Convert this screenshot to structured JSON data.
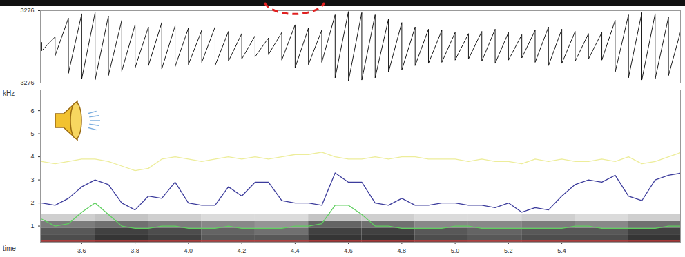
{
  "chart_data": [
    {
      "type": "waveform",
      "x": [
        3.45,
        3.5,
        3.55,
        3.6,
        3.65,
        3.7,
        3.75,
        3.8,
        3.85,
        3.9,
        3.95,
        4.0,
        4.05,
        4.1,
        4.15,
        4.2,
        4.25,
        4.3,
        4.35,
        4.4,
        4.45,
        4.5,
        4.55,
        4.6,
        4.65,
        4.7,
        4.75,
        4.8,
        4.85,
        4.9,
        4.95,
        5.0,
        5.05,
        5.1,
        5.15,
        5.2,
        5.25,
        5.3,
        5.35,
        5.4,
        5.45,
        5.5,
        5.55,
        5.6,
        5.65,
        5.7,
        5.75,
        5.8,
        5.85
      ],
      "envelope": {
        "max": [
          400,
          900,
          2600,
          3000,
          3100,
          2800,
          2400,
          2000,
          1800,
          2200,
          1900,
          1700,
          1500,
          1800,
          1400,
          1200,
          1000,
          800,
          1300,
          2000,
          1700,
          1500,
          2900,
          3200,
          3100,
          2900,
          2500,
          2200,
          1800,
          1600,
          1500,
          1300,
          1200,
          1400,
          1600,
          1300,
          1100,
          1500,
          1800,
          1600,
          1400,
          1200,
          1300,
          2400,
          2900,
          3100,
          3000,
          2700,
          1800
        ],
        "min": [
          -350,
          -800,
          -2400,
          -2900,
          -3000,
          -2600,
          -2200,
          -1900,
          -1700,
          -2000,
          -1800,
          -1600,
          -1400,
          -1700,
          -1300,
          -1100,
          -900,
          -700,
          -1200,
          -1900,
          -1600,
          -1400,
          -2800,
          -3100,
          -3000,
          -2800,
          -2300,
          -2100,
          -1700,
          -1500,
          -1400,
          -1200,
          -1100,
          -1300,
          -1500,
          -1200,
          -1000,
          -1400,
          -1700,
          -1500,
          -1300,
          -1100,
          -1200,
          -2300,
          -2800,
          -3000,
          -2900,
          -2600,
          -1700
        ]
      },
      "color": "#000000",
      "xlim": [
        3.445,
        5.845
      ],
      "ylim": [
        -3276,
        3276
      ],
      "yticks": [
        -3276,
        3276
      ],
      "tick_labels": "y"
    },
    {
      "type": "line",
      "ylabel": "kHz",
      "xlabel": "time",
      "x": [
        3.45,
        3.5,
        3.55,
        3.6,
        3.65,
        3.7,
        3.75,
        3.8,
        3.85,
        3.9,
        3.95,
        4.0,
        4.05,
        4.1,
        4.15,
        4.2,
        4.25,
        4.3,
        4.35,
        4.4,
        4.45,
        4.5,
        4.55,
        4.6,
        4.65,
        4.7,
        4.75,
        4.8,
        4.85,
        4.9,
        4.95,
        5.0,
        5.05,
        5.1,
        5.15,
        5.2,
        5.25,
        5.3,
        5.35,
        5.4,
        5.45,
        5.5,
        5.55,
        5.6,
        5.65,
        5.7,
        5.75,
        5.8,
        5.85
      ],
      "series": [
        {
          "color": "#5fcf5f",
          "values": [
            1.3,
            1.0,
            1.1,
            1.6,
            2.0,
            1.5,
            1.0,
            0.9,
            0.9,
            1.0,
            1.0,
            0.9,
            0.9,
            0.9,
            1.0,
            0.9,
            0.9,
            0.9,
            0.9,
            1.0,
            1.0,
            1.1,
            1.9,
            1.9,
            1.5,
            1.0,
            1.0,
            0.9,
            0.9,
            0.9,
            0.9,
            1.0,
            1.0,
            0.9,
            0.9,
            0.9,
            0.9,
            0.9,
            0.9,
            0.9,
            1.0,
            1.0,
            0.9,
            0.9,
            0.9,
            0.9,
            0.9,
            1.0,
            1.0
          ]
        },
        {
          "color": "#3c3c9c",
          "values": [
            2.0,
            1.9,
            2.2,
            2.7,
            3.0,
            2.8,
            2.0,
            1.7,
            2.3,
            2.2,
            2.9,
            2.0,
            1.9,
            1.9,
            2.7,
            2.3,
            2.9,
            2.9,
            2.1,
            2.0,
            2.0,
            1.9,
            3.3,
            2.9,
            2.9,
            2.0,
            1.9,
            2.2,
            1.9,
            1.9,
            2.0,
            2.0,
            1.9,
            1.9,
            1.8,
            2.0,
            1.6,
            1.8,
            1.7,
            2.3,
            2.8,
            3.0,
            2.9,
            3.2,
            2.3,
            2.1,
            3.0,
            3.2,
            3.3
          ]
        },
        {
          "color": "#eded9a",
          "values": [
            3.8,
            3.7,
            3.8,
            3.9,
            3.9,
            3.8,
            3.6,
            3.4,
            3.5,
            3.9,
            4.0,
            3.9,
            3.8,
            3.9,
            4.0,
            3.9,
            4.0,
            3.9,
            4.0,
            4.1,
            4.1,
            4.2,
            4.0,
            3.9,
            3.9,
            4.0,
            3.9,
            4.0,
            4.0,
            3.9,
            3.9,
            3.9,
            3.8,
            3.9,
            3.8,
            3.8,
            3.7,
            3.9,
            3.8,
            3.9,
            3.8,
            3.8,
            3.9,
            3.8,
            4.0,
            3.7,
            3.8,
            4.0,
            4.2
          ]
        },
        {
          "color": "#cc3a3a",
          "values": [
            0.35,
            0.35,
            0.35,
            0.35,
            0.35,
            0.35,
            0.35,
            0.35,
            0.35,
            0.35,
            0.35,
            0.35,
            0.35,
            0.35,
            0.35,
            0.35,
            0.35,
            0.35,
            0.35,
            0.35,
            0.35,
            0.35,
            0.35,
            0.35,
            0.35,
            0.35,
            0.35,
            0.35,
            0.35,
            0.35,
            0.35,
            0.35,
            0.35,
            0.35,
            0.35,
            0.35,
            0.35,
            0.35,
            0.35,
            0.35,
            0.35,
            0.35,
            0.35,
            0.35,
            0.35,
            0.35,
            0.35,
            0.35,
            0.35
          ]
        }
      ],
      "spectrogram": {
        "x_edges": [
          3.45,
          3.65,
          3.85,
          4.05,
          4.25,
          4.45,
          4.65,
          4.85,
          5.05,
          5.25,
          5.45,
          5.65,
          5.85
        ],
        "freq_edges": [
          0.3,
          0.6,
          0.9,
          1.2,
          1.5
        ],
        "intensity": [
          [
            0.75,
            0.7,
            0.55,
            0.2
          ],
          [
            0.85,
            0.8,
            0.6,
            0.25
          ],
          [
            0.8,
            0.75,
            0.55,
            0.2
          ],
          [
            0.7,
            0.65,
            0.5,
            0.15
          ],
          [
            0.7,
            0.6,
            0.45,
            0.15
          ],
          [
            0.85,
            0.8,
            0.65,
            0.25
          ],
          [
            0.85,
            0.8,
            0.6,
            0.2
          ],
          [
            0.75,
            0.7,
            0.5,
            0.15
          ],
          [
            0.7,
            0.65,
            0.5,
            0.15
          ],
          [
            0.75,
            0.7,
            0.55,
            0.2
          ],
          [
            0.75,
            0.7,
            0.5,
            0.15
          ],
          [
            0.85,
            0.8,
            0.6,
            0.2
          ]
        ],
        "intensity_lim": [
          0,
          1
        ]
      },
      "xlim": [
        3.445,
        5.845
      ],
      "ylim": [
        0.3,
        6.9
      ],
      "xticks": [
        3.6,
        3.8,
        {
          "value": 4,
          "label": "4.0"
        },
        4.2,
        4.4,
        4.6,
        4.8,
        {
          "value": 5,
          "label": "5.0"
        },
        5.2,
        5.4
      ],
      "yticks": [
        1,
        2,
        3,
        4,
        5,
        6
      ]
    }
  ]
}
